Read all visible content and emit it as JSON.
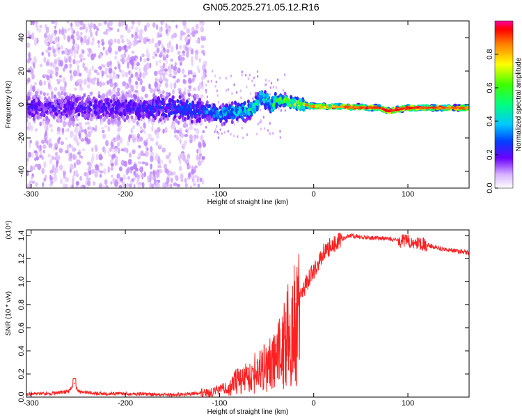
{
  "title": "GN05.2025.271.05.12.R16",
  "chart_data": [
    {
      "type": "heatmap",
      "xlabel": "Height of straight line (km)",
      "ylabel": "Frequency (Hz)",
      "xlim": [
        -305,
        165
      ],
      "ylim": [
        -50,
        50
      ],
      "xticks": [
        "-300",
        "-200",
        "-100",
        "0",
        "100"
      ],
      "xtick_values": [
        -300,
        -200,
        -100,
        0,
        100
      ],
      "yticks": [
        "-40",
        "-20",
        "0",
        "20",
        "40"
      ],
      "ytick_values": [
        -40,
        -20,
        0,
        20,
        40
      ],
      "colorbar": {
        "label": "Normalized spectral amplitude",
        "range": [
          0,
          1
        ],
        "ticks": [
          "0.0",
          "0.2",
          "0.4",
          "0.6",
          "0.8"
        ],
        "tick_values": [
          0.0,
          0.2,
          0.4,
          0.6,
          0.8
        ]
      },
      "ridge": [
        {
          "x": -300,
          "f": -2,
          "amp": 0.2
        },
        {
          "x": -200,
          "f": -2,
          "amp": 0.22
        },
        {
          "x": -120,
          "f": -3,
          "amp": 0.3
        },
        {
          "x": -100,
          "f": -6,
          "amp": 0.4
        },
        {
          "x": -80,
          "f": -4,
          "amp": 0.45
        },
        {
          "x": -65,
          "f": -3,
          "amp": 0.5
        },
        {
          "x": -55,
          "f": 5,
          "amp": 0.45
        },
        {
          "x": -45,
          "f": 0,
          "amp": 0.5
        },
        {
          "x": -35,
          "f": 3,
          "amp": 0.6
        },
        {
          "x": -20,
          "f": 0,
          "amp": 0.7
        },
        {
          "x": 0,
          "f": -1,
          "amp": 0.85
        },
        {
          "x": 70,
          "f": -2,
          "amp": 0.97
        },
        {
          "x": 80,
          "f": -4,
          "amp": 0.97
        },
        {
          "x": 100,
          "f": -2,
          "amp": 0.95
        },
        {
          "x": 165,
          "f": -2,
          "amp": 0.9
        }
      ]
    },
    {
      "type": "line",
      "xlabel": "Height of straight line (km)",
      "ylabel": "SNR (10 * v/v)",
      "y_multiplier": "(x10⁴)",
      "xlim": [
        -305,
        165
      ],
      "ylim": [
        0,
        1.45
      ],
      "xticks": [
        "-300",
        "-200",
        "-100",
        "0",
        "100"
      ],
      "xtick_values": [
        -300,
        -200,
        -100,
        0,
        100
      ],
      "yticks": [
        "0.0",
        "0.2",
        "0.4",
        "0.6",
        "0.8",
        "1.0",
        "1.2",
        "1.4"
      ],
      "ytick_values": [
        0.0,
        0.2,
        0.4,
        0.6,
        0.8,
        1.0,
        1.2,
        1.4
      ],
      "color": "#ff2020",
      "x": [
        -305,
        -280,
        -260,
        -254,
        -250,
        -230,
        -200,
        -150,
        -130,
        -110,
        -90,
        -80,
        -70,
        -60,
        -50,
        -40,
        -30,
        -20,
        -15,
        -10,
        0,
        10,
        20,
        30,
        40,
        50,
        60,
        70,
        80,
        90,
        100,
        110,
        120,
        130,
        140,
        150,
        165
      ],
      "y": [
        0.03,
        0.03,
        0.05,
        0.12,
        0.05,
        0.03,
        0.03,
        0.02,
        0.03,
        0.04,
        0.1,
        0.2,
        0.25,
        0.3,
        0.35,
        0.45,
        0.65,
        0.85,
        0.9,
        0.95,
        1.1,
        1.25,
        1.32,
        1.37,
        1.4,
        1.39,
        1.38,
        1.38,
        1.37,
        1.36,
        1.35,
        1.34,
        1.32,
        1.3,
        1.28,
        1.27,
        1.25
      ]
    }
  ]
}
